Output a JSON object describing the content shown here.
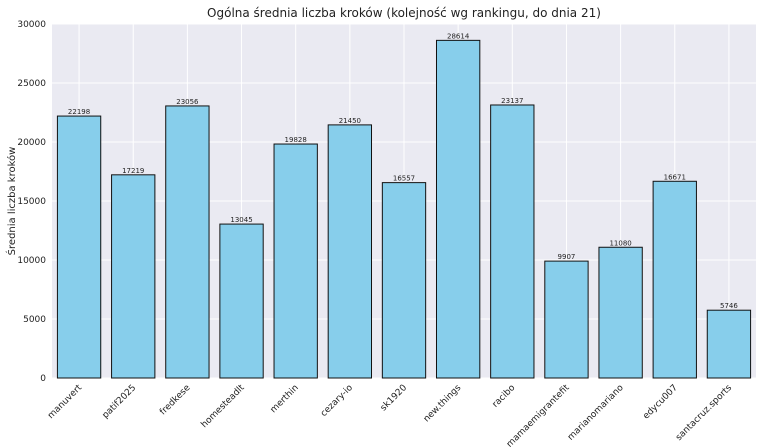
{
  "chart_data": {
    "type": "bar",
    "title": "Ogólna średnia liczba kroków (kolejność wg rankingu, do dnia 21)",
    "xlabel": "",
    "ylabel": "Średnia liczba kroków",
    "ylim": [
      0,
      30000
    ],
    "yticks": [
      0,
      5000,
      10000,
      15000,
      20000,
      25000,
      30000
    ],
    "grid": true,
    "categories": [
      "manuvert",
      "patif2025",
      "fredkese",
      "homesteadlt",
      "merthin",
      "cezary-io",
      "sk1920",
      "new.things",
      "racibo",
      "mamaemigrantefit",
      "marianomariano",
      "edycu007",
      "santacruz.sports"
    ],
    "values": [
      22198,
      17219,
      23056,
      13045,
      19828,
      21450,
      16557,
      28614,
      23137,
      9907,
      11080,
      16671,
      5746
    ],
    "colors": {
      "bar_fill": "#87CEEB",
      "bar_edge": "#111111",
      "plot_background": "#EAEAF2"
    }
  }
}
